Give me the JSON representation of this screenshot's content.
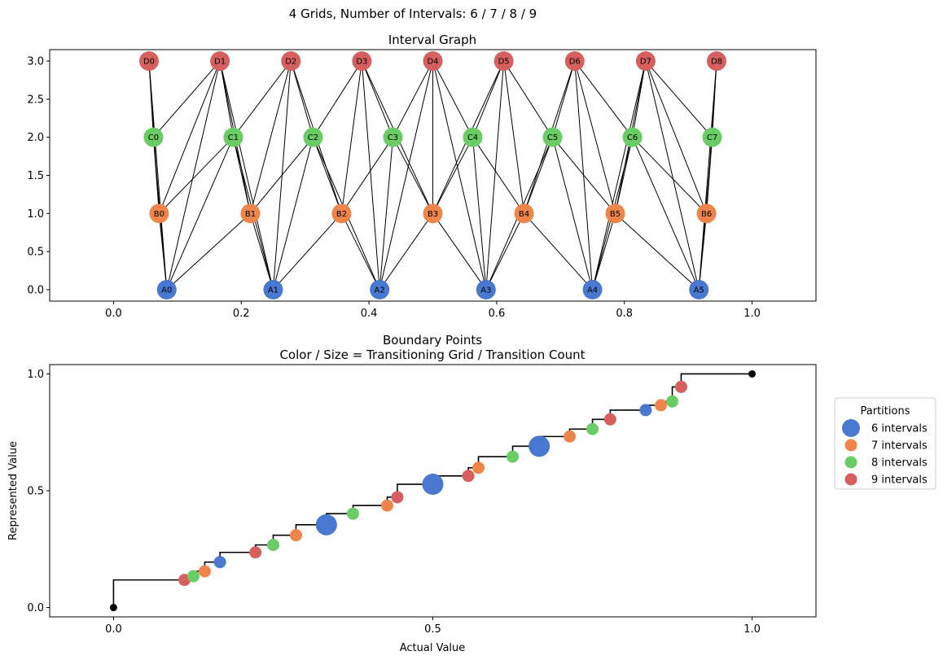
{
  "figure": {
    "suptitle": "4 Grids, Number of Intervals: 6 / 7 / 8 / 9"
  },
  "chart_data": [
    {
      "type": "network",
      "title": "Interval Graph",
      "xlim": [
        -0.1,
        1.1
      ],
      "ylim": [
        -0.15,
        3.15
      ],
      "xticks": [
        "0.0",
        "0.2",
        "0.4",
        "0.6",
        "0.8",
        "1.0"
      ],
      "xtick_values": [
        0.0,
        0.2,
        0.4,
        0.6,
        0.8,
        1.0
      ],
      "yticks": [
        "0.0",
        "0.5",
        "1.0",
        "1.5",
        "2.0",
        "2.5",
        "3.0"
      ],
      "ytick_values": [
        0.0,
        0.5,
        1.0,
        1.5,
        2.0,
        2.5,
        3.0
      ],
      "grids": [
        {
          "prefix": "A",
          "n": 6,
          "level": 0,
          "color": "#4878d0"
        },
        {
          "prefix": "B",
          "n": 7,
          "level": 1,
          "color": "#ee854a"
        },
        {
          "prefix": "C",
          "n": 8,
          "level": 2,
          "color": "#6acc64"
        },
        {
          "prefix": "D",
          "n": 9,
          "level": 3,
          "color": "#d65f5f"
        }
      ],
      "edge_rule": "edges connect intervals of different grids whose ranges overlap"
    },
    {
      "type": "step",
      "title": "Boundary Points",
      "subtitle": "Color / Size = Transitioning Grid / Transition Count",
      "xlabel": "Actual Value",
      "ylabel": "Represented Value",
      "xlim": [
        -0.1,
        1.1
      ],
      "ylim": [
        -0.04,
        1.04
      ],
      "xticks": [
        "0.0",
        "0.5",
        "1.0"
      ],
      "xtick_values": [
        0.0,
        0.5,
        1.0
      ],
      "yticks": [
        "0.0",
        "0.5",
        "1.0"
      ],
      "ytick_values": [
        0.0,
        0.5,
        1.0
      ],
      "endpoints": [
        [
          0,
          0
        ],
        [
          1,
          1
        ]
      ],
      "points_rule": "boundary points k/n for n in grid sizes; y = midpoint between neighbouring boundaries; color = grid; size = number of grids sharing the boundary",
      "legend": {
        "title": "Partitions",
        "placement": "right",
        "entries": [
          {
            "label": "6 intervals",
            "color": "#4878d0"
          },
          {
            "label": "7 intervals",
            "color": "#ee854a"
          },
          {
            "label": "8 intervals",
            "color": "#6acc64"
          },
          {
            "label": "9 intervals",
            "color": "#d65f5f"
          }
        ]
      }
    }
  ]
}
